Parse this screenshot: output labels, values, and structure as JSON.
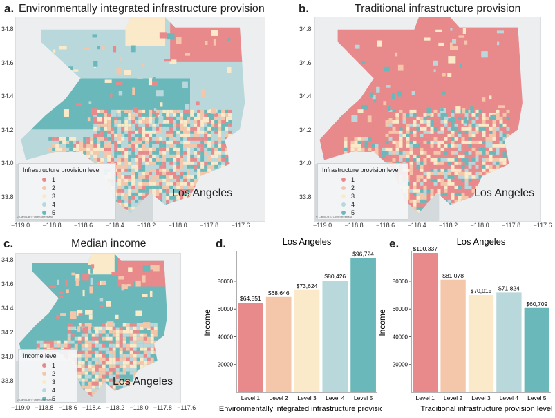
{
  "colors": {
    "level1": "#e8898b",
    "level2": "#f5c7aa",
    "level3": "#fbeac9",
    "level4": "#b8d8dc",
    "level5": "#6ab8ba",
    "land": "#eceeef",
    "ocean": "#d4d9dc"
  },
  "panel_a": {
    "letter": "a.",
    "title": "Environmentally integrated infrastructure provision",
    "city": "Los Angeles",
    "legend_title": "Infrastructure provision level",
    "legend_items": [
      "1",
      "2",
      "3",
      "4",
      "5"
    ],
    "credit": "© CartoDB © OpenStreetMap"
  },
  "panel_b": {
    "letter": "b.",
    "title": "Traditional infrastructure provision",
    "city": "Los Angeles",
    "legend_title": "Infrastructure provision level",
    "legend_items": [
      "1",
      "2",
      "3",
      "4",
      "5"
    ],
    "credit": "© CartoDB © OpenStreetMap"
  },
  "panel_c": {
    "letter": "c.",
    "title": "Median income",
    "city": "Los Angeles",
    "legend_title": "Income level",
    "legend_items": [
      "1",
      "2",
      "3",
      "4",
      "5"
    ],
    "credit": "© CartoDB © OpenStreetMap"
  },
  "map_axes": {
    "lon_ticks": [
      "−119.0",
      "−118.8",
      "−118.6",
      "−118.4",
      "−118.2",
      "−118.0",
      "−117.8",
      "−117.6"
    ],
    "lat_ticks": [
      "34.8",
      "34.6",
      "34.4",
      "34.2",
      "34.0",
      "33.8"
    ]
  },
  "panel_d": {
    "letter": "d."
  },
  "panel_e": {
    "letter": "e."
  },
  "chart_data": [
    {
      "type": "bar",
      "title": "Los Angeles",
      "xlabel": "Environmentally integrated infrastructure provision level",
      "ylabel": "Income",
      "categories": [
        "Level 1",
        "Level 2",
        "Level 3",
        "Level 4",
        "Level 5"
      ],
      "values": [
        64551,
        68646,
        73624,
        80426,
        96724
      ],
      "value_labels": [
        "$64,551",
        "$68,646",
        "$73,624",
        "$80,426",
        "$96,724"
      ],
      "yticks": [
        20000,
        40000,
        60000,
        80000
      ],
      "ylim": [
        0,
        100337
      ],
      "grid": false
    },
    {
      "type": "bar",
      "title": "Los Angeles",
      "xlabel": "Traditional infrastructure provision level",
      "ylabel": "Income",
      "categories": [
        "Level 1",
        "Level 2",
        "Level 3",
        "Level 4",
        "Level 5"
      ],
      "values": [
        100337,
        81078,
        70015,
        71824,
        60709
      ],
      "value_labels": [
        "$100,337",
        "$81,078",
        "$70,015",
        "$71,824",
        "$60,709"
      ],
      "yticks": [
        20000,
        40000,
        60000,
        80000
      ],
      "ylim": [
        0,
        100337
      ],
      "grid": false
    }
  ]
}
